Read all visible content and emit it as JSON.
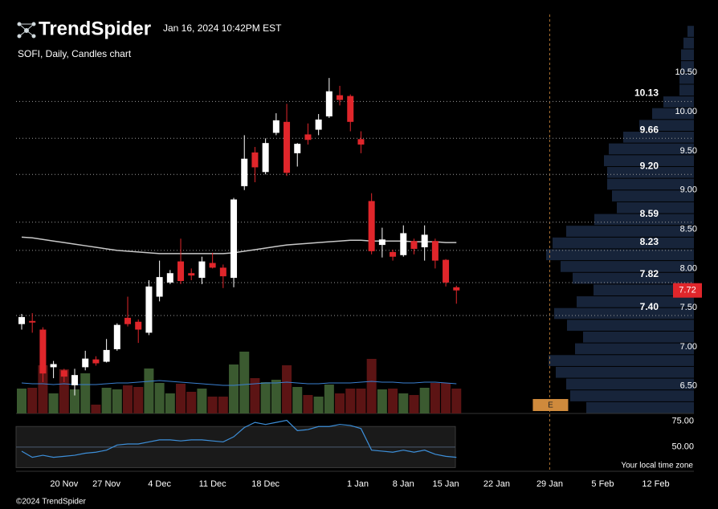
{
  "chart_data": {
    "type": "candlestick",
    "brand": "TrendSpider",
    "timestamp": "Jan 16, 2024 10:42PM EST",
    "title": "SOFI, Daily, Candles chart",
    "up_color": "#ffffff",
    "down_color": "#e0262b",
    "open": [
      7.29,
      7.33,
      7.22,
      6.74,
      6.7,
      6.51,
      6.74,
      6.84,
      6.81,
      6.97,
      7.37,
      7.32,
      7.18,
      7.64,
      7.82,
      8.09,
      7.94,
      7.88,
      8.07,
      8.01,
      7.88,
      9.05,
      9.48,
      9.23,
      9.73,
      9.87,
      9.47,
      9.71,
      9.77,
      9.94,
      10.21,
      10.2,
      9.65,
      8.86,
      8.3,
      8.21,
      8.17,
      8.35,
      8.27,
      8.35,
      8.11,
      7.76
    ],
    "high": [
      7.42,
      7.43,
      7.25,
      6.82,
      6.72,
      6.72,
      6.95,
      6.88,
      7.1,
      7.3,
      7.64,
      7.35,
      7.85,
      8.1,
      7.98,
      8.38,
      8.0,
      8.15,
      8.2,
      8.05,
      8.9,
      9.7,
      9.55,
      9.66,
      9.98,
      10.1,
      9.6,
      9.85,
      9.97,
      10.43,
      10.33,
      10.22,
      9.75,
      8.96,
      8.52,
      8.24,
      8.55,
      8.38,
      8.55,
      8.38,
      8.12,
      7.78
    ],
    "low": [
      7.22,
      7.18,
      6.55,
      6.6,
      6.55,
      6.38,
      6.7,
      6.76,
      6.8,
      6.95,
      7.26,
      7.05,
      7.15,
      7.58,
      7.8,
      7.8,
      7.85,
      7.8,
      8.0,
      7.75,
      7.76,
      9.0,
      9.1,
      9.2,
      9.7,
      9.18,
      9.3,
      9.58,
      9.7,
      9.92,
      10.08,
      9.75,
      9.47,
      8.18,
      8.14,
      8.1,
      8.15,
      8.18,
      8.1,
      8.0,
      7.77,
      7.55
    ],
    "close": [
      7.38,
      7.31,
      6.66,
      6.78,
      6.62,
      6.64,
      6.85,
      6.79,
      6.96,
      7.28,
      7.29,
      7.22,
      7.77,
      7.89,
      7.94,
      7.84,
      7.91,
      8.09,
      8.01,
      7.9,
      8.88,
      9.4,
      9.29,
      9.6,
      9.89,
      9.22,
      9.59,
      9.64,
      9.9,
      10.26,
      10.15,
      9.87,
      9.58,
      8.22,
      8.37,
      8.15,
      8.45,
      8.25,
      8.43,
      8.1,
      7.82,
      7.72
    ],
    "ylim": [
      6.15,
      11.22
    ],
    "yticks": [
      {
        "value": 6.5,
        "label": "6.50"
      },
      {
        "value": 7,
        "label": "7.00"
      },
      {
        "value": 7.5,
        "label": "7.50"
      },
      {
        "value": 8,
        "label": "8.00"
      },
      {
        "value": 8.5,
        "label": "8.50"
      },
      {
        "value": 9,
        "label": "9.00"
      },
      {
        "value": 9.5,
        "label": "9.50"
      },
      {
        "value": 10,
        "label": "10.00"
      },
      {
        "value": 10.5,
        "label": "10.50"
      }
    ],
    "xlim": [
      -0.53,
      63.4
    ],
    "xticks": [
      {
        "value": 4,
        "label": "20 Nov"
      },
      {
        "value": 8,
        "label": "27 Nov"
      },
      {
        "value": 13,
        "label": "4 Dec"
      },
      {
        "value": 18,
        "label": "11 Dec"
      },
      {
        "value": 23,
        "label": "18 Dec"
      },
      {
        "value": 31.7,
        "label": "1 Jan"
      },
      {
        "value": 36,
        "label": "8 Jan"
      },
      {
        "value": 40,
        "label": "15 Jan"
      },
      {
        "value": 44.8,
        "label": "22 Jan"
      },
      {
        "value": 49.8,
        "label": "29 Jan"
      },
      {
        "value": 54.8,
        "label": "5 Feb"
      },
      {
        "value": 59.8,
        "label": "12 Feb"
      }
    ],
    "levels": [
      10.13,
      9.66,
      {
        "value": 9.2,
        "label": "9.20"
      },
      8.59,
      8.23,
      7.82,
      {
        "value": 7.4,
        "label": "7.40"
      }
    ],
    "last_price": 7.72,
    "moving_average": {
      "color": "#c8c8c8",
      "values": [
        8.4,
        8.39,
        8.37,
        8.35,
        8.33,
        8.31,
        8.29,
        8.27,
        8.25,
        8.23,
        8.22,
        8.21,
        8.2,
        8.19,
        8.19,
        8.19,
        8.19,
        8.19,
        8.19,
        8.19,
        8.2,
        8.22,
        8.24,
        8.26,
        8.28,
        8.3,
        8.31,
        8.32,
        8.33,
        8.34,
        8.35,
        8.36,
        8.36,
        8.35,
        8.35,
        8.35,
        8.35,
        8.34,
        8.34,
        8.34,
        8.33,
        8.33
      ]
    },
    "volume": {
      "up_color": "#3b5a30",
      "down_color": "#5c1414",
      "ma_color": "#3a7fd0",
      "values": [
        31,
        32,
        60,
        25,
        55,
        30,
        50,
        11,
        32,
        30,
        35,
        33,
        56,
        38,
        25,
        37,
        27,
        31,
        21,
        21,
        61,
        77,
        44,
        39,
        42,
        60,
        33,
        23,
        21,
        36,
        25,
        31,
        31,
        68,
        30,
        31,
        25,
        23,
        32,
        38,
        38,
        31
      ],
      "ma": [
        38,
        37,
        37,
        36,
        37,
        36,
        36,
        36,
        37,
        38,
        38,
        39,
        40,
        41,
        40,
        39,
        38,
        37,
        36,
        35,
        35,
        36,
        37,
        38,
        38,
        39,
        38,
        37,
        37,
        38,
        38,
        38,
        39,
        40,
        39,
        39,
        38,
        38,
        39,
        39,
        38,
        37
      ]
    },
    "volume_profile": {
      "color": "#17243a",
      "bins": [
        6.15,
        6.3,
        6.45,
        6.6,
        6.75,
        6.9,
        7.05,
        7.2,
        7.35,
        7.5,
        7.65,
        7.8,
        7.95,
        8.1,
        8.25,
        8.4,
        8.55,
        8.7,
        8.85,
        9.0,
        9.15,
        9.3,
        9.45,
        9.6,
        9.75,
        9.9,
        10.05,
        10.2,
        10.35,
        10.5,
        10.65,
        10.8,
        10.95,
        11.1
      ],
      "values": [
        134,
        154,
        159,
        172,
        181,
        148,
        138,
        158,
        174,
        146,
        125,
        151,
        166,
        184,
        176,
        159,
        124,
        96,
        102,
        108,
        108,
        112,
        106,
        88,
        68,
        52,
        38,
        18,
        18,
        16,
        16,
        13,
        8
      ]
    },
    "rsi": {
      "color": "#3d8fd9",
      "ylim": [
        28,
        78
      ],
      "band": [
        30,
        70
      ],
      "yticks": [
        {
          "value": 75,
          "label": "75.00"
        },
        {
          "value": 50,
          "label": "50.00"
        }
      ],
      "values": [
        46,
        40,
        42,
        40,
        41,
        42,
        44,
        45,
        47,
        52,
        53,
        53,
        55,
        57,
        57,
        56,
        57,
        57,
        56,
        55,
        60,
        69,
        74,
        72,
        74,
        76,
        66,
        67,
        70,
        70,
        72,
        71,
        68,
        47,
        46,
        45,
        47,
        45,
        47,
        43,
        41,
        40
      ]
    },
    "earnings": {
      "label": "E",
      "x": 49.8,
      "color": "#cf8a3c"
    },
    "timezone_note": "Your local time zone",
    "copyright": "©2024 TrendSpider"
  }
}
